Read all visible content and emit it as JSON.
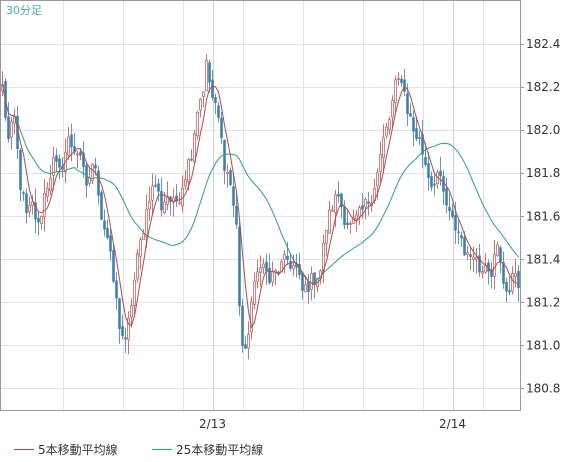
{
  "timeframe_label": "30分足",
  "colors": {
    "up": "#c0504d",
    "down": "#3a7fb0",
    "ma5": "#b04a4a",
    "ma25": "#2ca080",
    "grid": "#e3e3e3",
    "axis": "#999999",
    "timeframe": "#4aa8c8"
  },
  "legend": [
    {
      "name": "5本移動平均線",
      "color": "#b04a4a"
    },
    {
      "name": "25本移動平均線",
      "color": "#2ca080"
    }
  ],
  "chart_data": {
    "type": "candlestick",
    "x_ticks": [
      {
        "label": "2/13",
        "bar": 70
      },
      {
        "label": "2/14",
        "bar": 150
      }
    ],
    "y_ticks": [
      180.8,
      181.0,
      181.2,
      181.4,
      181.6,
      181.8,
      182.0,
      182.2,
      182.4
    ],
    "ylim": [
      180.7,
      182.6
    ],
    "grid": true,
    "bar_count": 173,
    "close_keypoints": [
      [
        0,
        182.2
      ],
      [
        2,
        181.95
      ],
      [
        4,
        182.05
      ],
      [
        6,
        181.75
      ],
      [
        8,
        181.6
      ],
      [
        10,
        181.65
      ],
      [
        12,
        181.55
      ],
      [
        14,
        181.7
      ],
      [
        17,
        181.85
      ],
      [
        19,
        181.8
      ],
      [
        22,
        181.95
      ],
      [
        25,
        181.9
      ],
      [
        28,
        181.75
      ],
      [
        31,
        181.85
      ],
      [
        33,
        181.6
      ],
      [
        35,
        181.5
      ],
      [
        37,
        181.3
      ],
      [
        39,
        181.1
      ],
      [
        41,
        181.0
      ],
      [
        43,
        181.2
      ],
      [
        45,
        181.4
      ],
      [
        47,
        181.55
      ],
      [
        49,
        181.7
      ],
      [
        51,
        181.75
      ],
      [
        53,
        181.65
      ],
      [
        55,
        181.7
      ],
      [
        57,
        181.65
      ],
      [
        59,
        181.7
      ],
      [
        61,
        181.8
      ],
      [
        63,
        181.9
      ],
      [
        65,
        182.1
      ],
      [
        67,
        182.2
      ],
      [
        68,
        182.3
      ],
      [
        70,
        182.15
      ],
      [
        72,
        182.05
      ],
      [
        74,
        181.85
      ],
      [
        76,
        181.75
      ],
      [
        78,
        181.55
      ],
      [
        79,
        181.2
      ],
      [
        80,
        181.0
      ],
      [
        81,
        180.95
      ],
      [
        83,
        181.2
      ],
      [
        86,
        181.4
      ],
      [
        89,
        181.3
      ],
      [
        92,
        181.35
      ],
      [
        95,
        181.4
      ],
      [
        98,
        181.35
      ],
      [
        100,
        181.25
      ],
      [
        103,
        181.3
      ],
      [
        106,
        181.35
      ],
      [
        108,
        181.55
      ],
      [
        110,
        181.65
      ],
      [
        112,
        181.7
      ],
      [
        114,
        181.6
      ],
      [
        116,
        181.55
      ],
      [
        119,
        181.6
      ],
      [
        121,
        181.65
      ],
      [
        123,
        181.7
      ],
      [
        125,
        181.8
      ],
      [
        127,
        181.95
      ],
      [
        129,
        182.05
      ],
      [
        131,
        182.2
      ],
      [
        133,
        182.25
      ],
      [
        135,
        182.1
      ],
      [
        137,
        182.0
      ],
      [
        139,
        181.95
      ],
      [
        141,
        181.85
      ],
      [
        143,
        181.75
      ],
      [
        145,
        181.8
      ],
      [
        147,
        181.7
      ],
      [
        149,
        181.6
      ],
      [
        151,
        181.55
      ],
      [
        153,
        181.5
      ],
      [
        155,
        181.4
      ],
      [
        157,
        181.45
      ],
      [
        159,
        181.35
      ],
      [
        161,
        181.4
      ],
      [
        163,
        181.35
      ],
      [
        165,
        181.45
      ],
      [
        167,
        181.3
      ],
      [
        169,
        181.25
      ],
      [
        171,
        181.35
      ],
      [
        172,
        181.3
      ]
    ]
  }
}
